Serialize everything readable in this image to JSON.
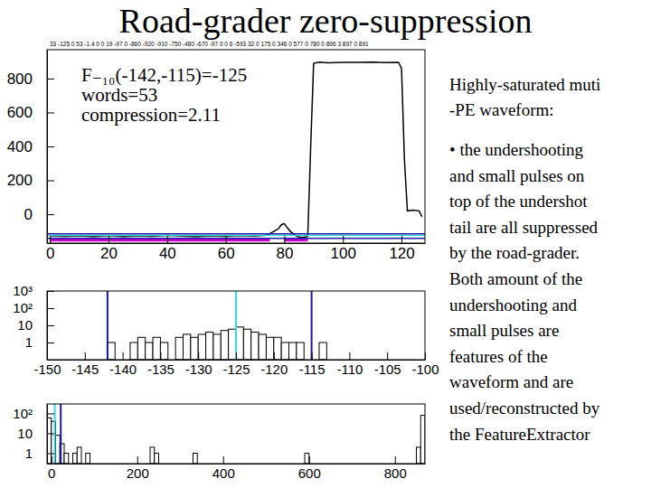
{
  "slide": {
    "title": "Road-grader zero-suppression",
    "lines": [
      "Highly-saturated muti",
      "-PE waveform:",
      "• the undershooting",
      "and small pulses on",
      "top of the undershot",
      "tail are all suppressed",
      "by the road-grader.",
      "Both amount of the",
      "undershooting and",
      "small pulses are",
      "features of the",
      "waveform and are",
      "used/reconstructed by",
      "the FeatureExtractor"
    ]
  },
  "chart_data": [
    {
      "type": "line",
      "annotations": [
        "33 -125 0 53 -1.4 0 0 19 -97 0 -860 -920 -910 -750 -480 -670 -97 0 0 6 -593 32 0 175 0 346 0 577 0 780 0 896 3 897 0 891",
        "F₋₁₀(-142,-115)=-125",
        "words=53",
        "compression=2.11"
      ],
      "series": [
        {
          "color": "#000000",
          "x": [
            0,
            5,
            10,
            15,
            20,
            25,
            30,
            35,
            40,
            45,
            50,
            55,
            60,
            65,
            70,
            74,
            76,
            78,
            79,
            80,
            81,
            82,
            84,
            86,
            88,
            89,
            90,
            92,
            95,
            100,
            105,
            110,
            115,
            119,
            120,
            121,
            122,
            124,
            126,
            127
          ],
          "values": [
            -128,
            -130,
            -127,
            -131,
            -126,
            -132,
            -128,
            -130,
            -125,
            -129,
            -131,
            -127,
            -130,
            -126,
            -129,
            -124,
            -105,
            -85,
            -62,
            -55,
            -80,
            -100,
            -128,
            -138,
            -130,
            400,
            890,
            897,
            893,
            896,
            895,
            897,
            894,
            896,
            860,
            320,
            20,
            25,
            20,
            -15
          ]
        },
        {
          "color": "#cc00cc",
          "x": [
            0,
            75,
            76,
            80,
            88
          ],
          "values": [
            -152,
            -152,
            null,
            -152,
            -152
          ]
        }
      ],
      "hlines": [
        {
          "value": -142,
          "color": "#1a1aa0"
        },
        {
          "value": -125,
          "color": "#33dddd"
        },
        {
          "value": -115,
          "color": "#1a1aa0"
        }
      ],
      "xlim": [
        -1,
        128
      ],
      "ylim": [
        -170,
        970
      ],
      "xticks": [
        0,
        20,
        40,
        60,
        80,
        100,
        120
      ],
      "yticks": [
        0,
        200,
        400,
        600,
        800
      ]
    },
    {
      "type": "histogram",
      "log": "y",
      "bins": [
        -150,
        -142,
        -141,
        -139,
        -138,
        -137,
        -136,
        -135,
        -134,
        -133,
        -132,
        -131,
        -130,
        -129,
        -128,
        -127,
        -126,
        -125,
        -124,
        -123,
        -122,
        -121,
        -120,
        -119,
        -118,
        -117,
        -116,
        -114,
        -113,
        -100
      ],
      "counts": [
        0,
        1,
        0,
        1,
        2,
        1,
        2,
        1,
        0,
        2,
        3,
        2,
        3,
        4,
        3,
        5,
        6,
        8,
        6,
        4,
        3,
        2,
        2,
        1,
        1,
        1,
        0,
        1,
        0
      ],
      "vlines": [
        {
          "value": -142,
          "color": "#1a1aa0"
        },
        {
          "value": -125,
          "color": "#33dddd"
        },
        {
          "value": -115,
          "color": "#1a1aa0"
        }
      ],
      "xlim": [
        -150,
        -100
      ],
      "ylim": [
        0.1,
        1000
      ],
      "xticks": [
        -150,
        -145,
        -140,
        -135,
        -130,
        -125,
        -120,
        -115,
        -110,
        -105,
        -100
      ],
      "yticks": [
        1,
        10,
        {
          "value": 100,
          "label": "10²"
        },
        {
          "value": 1000,
          "label": "10³"
        }
      ]
    },
    {
      "type": "histogram",
      "log": "y",
      "bins": [
        -10,
        0,
        10,
        20,
        30,
        40,
        50,
        60,
        70,
        80,
        90,
        230,
        240,
        250,
        330,
        340,
        590,
        600,
        850,
        860,
        870
      ],
      "counts": [
        60,
        40,
        8,
        3,
        1,
        0,
        1,
        2,
        0,
        1,
        0,
        2,
        1,
        0,
        1,
        0,
        1,
        0,
        2,
        80
      ],
      "vlines": [
        {
          "value": 8,
          "color": "#33dddd"
        },
        {
          "value": 22,
          "color": "#1a1aa0"
        }
      ],
      "xlim": [
        -10,
        870
      ],
      "ylim": [
        0.3,
        300
      ],
      "xticks": [
        0,
        200,
        400,
        600,
        800
      ],
      "yticks": [
        1,
        10,
        {
          "value": 100,
          "label": "10²"
        }
      ]
    }
  ]
}
